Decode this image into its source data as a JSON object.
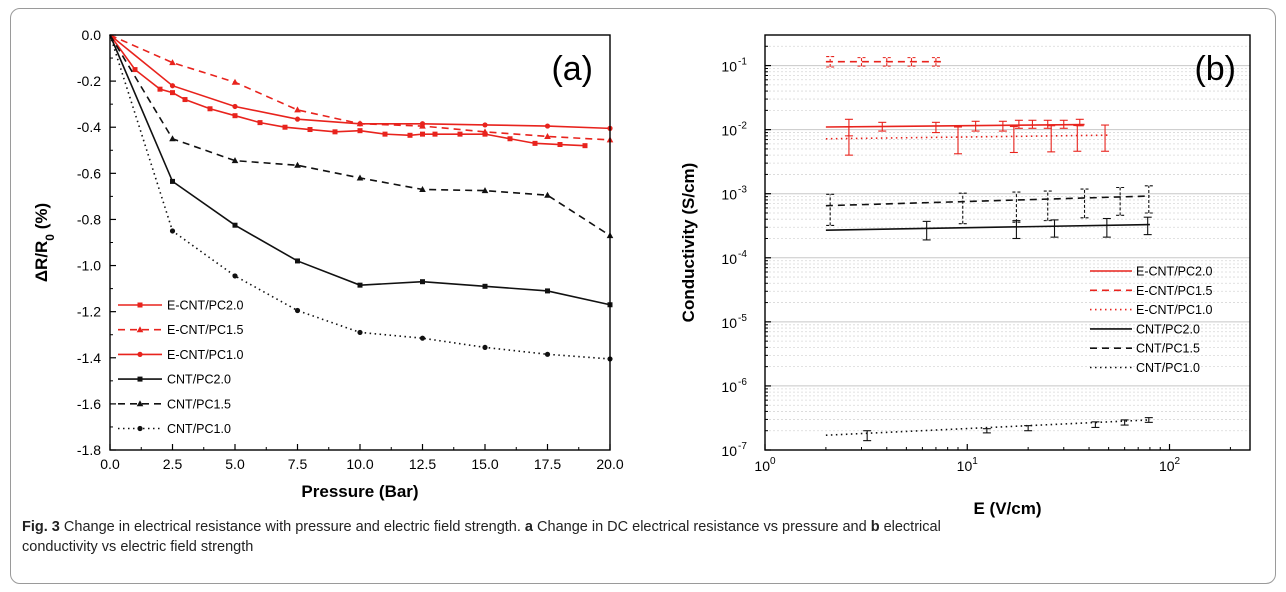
{
  "colors": {
    "red": "#e8231d",
    "black": "#111111",
    "grid": "#c8c8c8"
  },
  "chart_data": [
    {
      "type": "line",
      "panel_label": "(a)",
      "xlabel": "Pressure (Bar)",
      "ylabel_main": "ΔR/R",
      "ylabel_sub": "0",
      "ylabel_unit": " (%)",
      "xlim": [
        0,
        20
      ],
      "ylim": [
        -1.8,
        0
      ],
      "xticks": [
        "0.0",
        "2.5",
        "5.0",
        "7.5",
        "10.0",
        "12.5",
        "15.0",
        "17.5",
        "20.0"
      ],
      "yticks": [
        "0.0",
        "-0.2",
        "-0.4",
        "-0.6",
        "-0.8",
        "-1.0",
        "-1.2",
        "-1.4",
        "-1.6",
        "-1.8"
      ],
      "legend_position": "lower-left",
      "series": [
        {
          "name": "E-CNT/PC2.0",
          "color": "#e8231d",
          "dash": "solid",
          "marker": "square",
          "x": [
            0,
            1,
            2,
            2.5,
            3,
            4,
            5,
            6,
            7,
            8,
            9,
            10,
            11,
            12,
            12.5,
            13,
            14,
            15,
            16,
            17,
            18,
            19
          ],
          "y": [
            0,
            -0.15,
            -0.235,
            -0.25,
            -0.28,
            -0.32,
            -0.35,
            -0.38,
            -0.4,
            -0.41,
            -0.42,
            -0.415,
            -0.43,
            -0.435,
            -0.43,
            -0.43,
            -0.43,
            -0.43,
            -0.45,
            -0.47,
            -0.475,
            -0.48
          ]
        },
        {
          "name": "E-CNT/PC1.5",
          "color": "#e8231d",
          "dash": "dashed",
          "marker": "triangle",
          "x": [
            0,
            2.5,
            5,
            7.5,
            10,
            12.5,
            15,
            17.5,
            20
          ],
          "y": [
            0,
            -0.12,
            -0.205,
            -0.325,
            -0.385,
            -0.395,
            -0.42,
            -0.44,
            -0.455
          ]
        },
        {
          "name": "E-CNT/PC1.0",
          "color": "#e8231d",
          "dash": "solid",
          "marker": "circle",
          "x": [
            0,
            2.5,
            5,
            7.5,
            10,
            12.5,
            15,
            17.5,
            20
          ],
          "y": [
            0,
            -0.22,
            -0.31,
            -0.365,
            -0.385,
            -0.385,
            -0.39,
            -0.395,
            -0.405
          ]
        },
        {
          "name": "CNT/PC2.0",
          "color": "#111111",
          "dash": "solid",
          "marker": "square",
          "x": [
            0,
            2.5,
            5,
            7.5,
            10,
            12.5,
            15,
            17.5,
            20
          ],
          "y": [
            0,
            -0.635,
            -0.825,
            -0.98,
            -1.085,
            -1.07,
            -1.09,
            -1.11,
            -1.17
          ]
        },
        {
          "name": "CNT/PC1.5",
          "color": "#111111",
          "dash": "dashed",
          "marker": "triangle",
          "x": [
            0,
            2.5,
            5,
            7.5,
            10,
            12.5,
            15,
            17.5,
            20
          ],
          "y": [
            0,
            -0.45,
            -0.545,
            -0.565,
            -0.62,
            -0.67,
            -0.675,
            -0.695,
            -0.87
          ]
        },
        {
          "name": "CNT/PC1.0",
          "color": "#111111",
          "dash": "dotted",
          "marker": "circle",
          "x": [
            0,
            2.5,
            5,
            7.5,
            10,
            12.5,
            15,
            17.5,
            20
          ],
          "y": [
            0,
            -0.85,
            -1.045,
            -1.195,
            -1.29,
            -1.315,
            -1.355,
            -1.385,
            -1.405
          ]
        }
      ]
    },
    {
      "type": "line",
      "panel_label": "(b)",
      "xlabel": "E (V/cm)",
      "ylabel": "Conductivity (S/cm)",
      "xscale": "log",
      "yscale": "log",
      "xlim": [
        1,
        250
      ],
      "ylim": [
        1e-07,
        0.3
      ],
      "xticks": [
        {
          "v": 1,
          "base": "10",
          "exp": "0"
        },
        {
          "v": 10,
          "base": "10",
          "exp": "1"
        },
        {
          "v": 100,
          "base": "10",
          "exp": "2"
        }
      ],
      "yticks": [
        {
          "v": 1e-07,
          "base": "10",
          "exp": "-7"
        },
        {
          "v": 1e-06,
          "base": "10",
          "exp": "-6"
        },
        {
          "v": 1e-05,
          "base": "10",
          "exp": "-5"
        },
        {
          "v": 0.0001,
          "base": "10",
          "exp": "-4"
        },
        {
          "v": 0.001,
          "base": "10",
          "exp": "-3"
        },
        {
          "v": 0.01,
          "base": "10",
          "exp": "-2"
        },
        {
          "v": 0.1,
          "base": "10",
          "exp": "-1"
        }
      ],
      "legend_position": "right",
      "series": [
        {
          "name": "E-CNT/PC2.0",
          "color": "#e8231d",
          "dash": "solid",
          "x": [
            2,
            38
          ],
          "y": [
            0.011,
            0.012
          ],
          "err_x": [
            2.6,
            3.8,
            7,
            11,
            15,
            18,
            21,
            25,
            30,
            36
          ],
          "err_y": [
            0.011,
            0.011,
            0.011,
            0.0115,
            0.0115,
            0.012,
            0.012,
            0.012,
            0.012,
            0.0125
          ],
          "err_lo": [
            0.008,
            0.0095,
            0.009,
            0.0095,
            0.0095,
            0.0105,
            0.0105,
            0.0105,
            0.0105,
            0.0115
          ],
          "err_hi": [
            0.0145,
            0.013,
            0.013,
            0.0135,
            0.0135,
            0.014,
            0.014,
            0.014,
            0.014,
            0.0145
          ]
        },
        {
          "name": "E-CNT/PC1.5",
          "color": "#e8231d",
          "dash": "dashed",
          "x": [
            2,
            7.5
          ],
          "y": [
            0.115,
            0.115
          ],
          "err_x": [
            2.1,
            3.0,
            4.0,
            5.3,
            7.0
          ],
          "err_y": [
            0.115,
            0.115,
            0.115,
            0.115,
            0.115
          ],
          "err_lo": [
            0.095,
            0.098,
            0.098,
            0.098,
            0.098
          ],
          "err_hi": [
            0.138,
            0.133,
            0.133,
            0.133,
            0.133
          ]
        },
        {
          "name": "E-CNT/PC1.0",
          "color": "#e8231d",
          "dash": "dotted",
          "x": [
            2,
            50
          ],
          "y": [
            0.0072,
            0.0082
          ],
          "err_x": [
            2.6,
            9,
            17,
            26,
            35,
            48
          ],
          "err_y": [
            0.0075,
            0.0076,
            0.0078,
            0.008,
            0.0081,
            0.0082
          ],
          "err_lo": [
            0.004,
            0.0042,
            0.0044,
            0.0045,
            0.0046,
            0.0046
          ],
          "err_hi": [
            0.011,
            0.011,
            0.0112,
            0.0115,
            0.0116,
            0.0118
          ]
        },
        {
          "name": "CNT/PC2.0",
          "color": "#111111",
          "dash": "solid",
          "x": [
            2,
            80
          ],
          "y": [
            0.00027,
            0.00033
          ],
          "err_x": [
            6.3,
            17.5,
            27,
            49,
            78
          ],
          "err_y": [
            0.00028,
            0.00029,
            0.0003,
            0.00031,
            0.00033
          ],
          "err_lo": [
            0.00019,
            0.0002,
            0.00021,
            0.00021,
            0.00023
          ],
          "err_hi": [
            0.00037,
            0.00038,
            0.00039,
            0.00041,
            0.00043
          ]
        },
        {
          "name": "CNT/PC1.5",
          "color": "#111111",
          "dash": "dashed",
          "x": [
            2,
            80
          ],
          "y": [
            0.00065,
            0.00092
          ],
          "err_x": [
            2.1,
            9.5,
            17.5,
            25,
            38,
            57,
            79
          ],
          "err_y": [
            0.00065,
            0.0007,
            0.00072,
            0.00075,
            0.0008,
            0.00085,
            0.0009
          ],
          "err_lo": [
            0.00032,
            0.00034,
            0.00036,
            0.00038,
            0.00042,
            0.00046,
            0.0005
          ],
          "err_hi": [
            0.00098,
            0.00102,
            0.00106,
            0.0011,
            0.00118,
            0.00125,
            0.00133
          ]
        },
        {
          "name": "CNT/PC1.0",
          "color": "#111111",
          "dash": "dotted",
          "x": [
            2,
            80
          ],
          "y": [
            1.7e-07,
            2.95e-07
          ],
          "err_x": [
            3.2,
            12.5,
            20,
            43,
            60,
            79
          ],
          "err_y": [
            1.7e-07,
            2e-07,
            2.2e-07,
            2.5e-07,
            2.7e-07,
            2.95e-07
          ],
          "err_lo": [
            1.4e-07,
            1.85e-07,
            2e-07,
            2.25e-07,
            2.45e-07,
            2.7e-07
          ],
          "err_hi": [
            2e-07,
            2.15e-07,
            2.4e-07,
            2.75e-07,
            2.95e-07,
            3.2e-07
          ]
        }
      ]
    }
  ],
  "caption": {
    "fig_label": "Fig. 3",
    "text1": " Change in electrical resistance with pressure and electric field strength. ",
    "a_label": "a",
    "text2": " Change in DC electrical resistance vs pressure and ",
    "b_label": "b",
    "text3": " electrical",
    "line2": "conductivity vs electric field strength"
  }
}
